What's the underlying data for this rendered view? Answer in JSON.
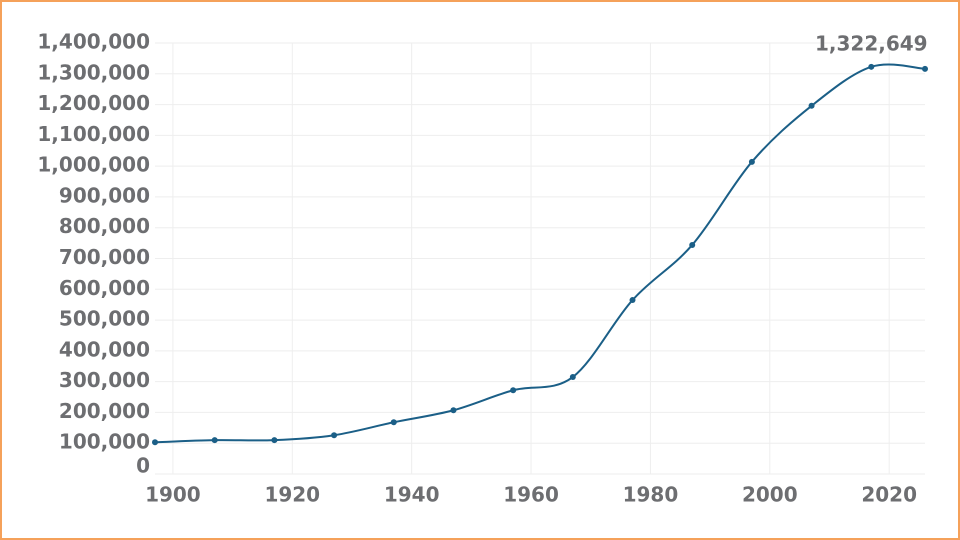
{
  "chart_data": {
    "type": "line",
    "x": [
      1897,
      1907,
      1917,
      1927,
      1937,
      1947,
      1957,
      1967,
      1977,
      1987,
      1997,
      2007,
      2017,
      2026
    ],
    "series": [
      {
        "color": "#1b5f87",
        "values": [
          103000,
          110000,
          110000,
          126000,
          168000,
          207000,
          272000,
          315000,
          565000,
          744000,
          1014000,
          1196000,
          1322649,
          1316000
        ],
        "value_labels": [
          null,
          null,
          null,
          null,
          null,
          null,
          null,
          null,
          null,
          null,
          null,
          null,
          "1,322,649",
          null
        ]
      }
    ],
    "xlim": [
      1897,
      2026
    ],
    "xticks": [
      1900,
      1920,
      1940,
      1960,
      1980,
      2000,
      2020
    ],
    "ylim": [
      0,
      1400000
    ],
    "yticks": [
      0,
      {
        "value": 100000,
        "label": "100,000"
      },
      {
        "value": 200000,
        "label": "200,000"
      },
      {
        "value": 300000,
        "label": "300,000"
      },
      {
        "value": 400000,
        "label": "400,000"
      },
      {
        "value": 500000,
        "label": "500,000"
      },
      {
        "value": 600000,
        "label": "600,000"
      },
      {
        "value": 700000,
        "label": "700,000"
      },
      {
        "value": 800000,
        "label": "800,000"
      },
      {
        "value": 900000,
        "label": "900,000"
      },
      {
        "value": 1000000,
        "label": "1,000,000"
      },
      {
        "value": 1100000,
        "label": "1,100,000"
      },
      {
        "value": 1200000,
        "label": "1,200,000"
      },
      {
        "value": 1300000,
        "label": "1,300,000"
      },
      {
        "value": 1400000,
        "label": "1,400,000"
      }
    ],
    "grid": true
  }
}
